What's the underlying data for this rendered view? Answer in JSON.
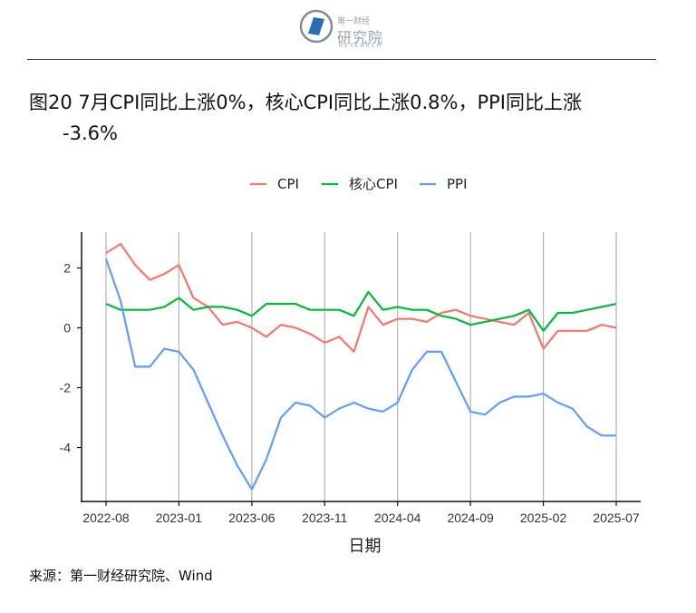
{
  "header": {
    "logo_small": "第一财经",
    "logo_cn": "研究院",
    "logo_en": "RESEARCH"
  },
  "title": {
    "line1": "图20 7月CPI同比上涨0%，核心CPI同比上涨0.8%，PPI同比上涨",
    "line2": "-3.6%"
  },
  "source": "来源：第一财经研究院、Wind",
  "colors": {
    "cpi": "#F8766D",
    "core": "#00BA38",
    "ppi": "#619CFF"
  },
  "chart_data": {
    "type": "line",
    "xlabel": "日期",
    "ylabel": "",
    "ylim": [
      -5.8,
      3.2
    ],
    "yticks": [
      2,
      0,
      -2,
      -4
    ],
    "xticks": [
      "2022-08",
      "2023-01",
      "2023-06",
      "2023-11",
      "2024-04",
      "2024-09",
      "2025-02",
      "2025-07"
    ],
    "legend_position": "top",
    "grid": "vertical",
    "x": [
      "2022-08",
      "2022-09",
      "2022-10",
      "2022-11",
      "2022-12",
      "2023-01",
      "2023-02",
      "2023-03",
      "2023-04",
      "2023-05",
      "2023-06",
      "2023-07",
      "2023-08",
      "2023-09",
      "2023-10",
      "2023-11",
      "2023-12",
      "2024-01",
      "2024-02",
      "2024-03",
      "2024-04",
      "2024-05",
      "2024-06",
      "2024-07",
      "2024-08",
      "2024-09",
      "2024-10",
      "2024-11",
      "2024-12",
      "2025-01",
      "2025-02",
      "2025-03",
      "2025-04",
      "2025-05",
      "2025-06",
      "2025-07"
    ],
    "series": [
      {
        "name": "CPI",
        "color": "#F8766D",
        "values": [
          2.5,
          2.8,
          2.1,
          1.6,
          1.8,
          2.1,
          1.0,
          0.7,
          0.1,
          0.2,
          0.0,
          -0.3,
          0.1,
          0.0,
          -0.2,
          -0.5,
          -0.3,
          -0.8,
          0.7,
          0.1,
          0.3,
          0.3,
          0.2,
          0.5,
          0.6,
          0.4,
          0.3,
          0.2,
          0.1,
          0.5,
          -0.7,
          -0.1,
          -0.1,
          -0.1,
          0.1,
          0.0
        ]
      },
      {
        "name": "核心CPI",
        "color": "#00BA38",
        "values": [
          0.8,
          0.6,
          0.6,
          0.6,
          0.7,
          1.0,
          0.6,
          0.7,
          0.7,
          0.6,
          0.4,
          0.8,
          0.8,
          0.8,
          0.6,
          0.6,
          0.6,
          0.4,
          1.2,
          0.6,
          0.7,
          0.6,
          0.6,
          0.4,
          0.3,
          0.1,
          0.2,
          0.3,
          0.4,
          0.6,
          -0.1,
          0.5,
          0.5,
          0.6,
          0.7,
          0.8
        ]
      },
      {
        "name": "PPI",
        "color": "#619CFF",
        "values": [
          2.3,
          0.9,
          -1.3,
          -1.3,
          -0.7,
          -0.8,
          -1.4,
          -2.5,
          -3.6,
          -4.6,
          -5.4,
          -4.4,
          -3.0,
          -2.5,
          -2.6,
          -3.0,
          -2.7,
          -2.5,
          -2.7,
          -2.8,
          -2.5,
          -1.4,
          -0.8,
          -0.8,
          -1.8,
          -2.8,
          -2.9,
          -2.5,
          -2.3,
          -2.3,
          -2.2,
          -2.5,
          -2.7,
          -3.3,
          -3.6,
          -3.6
        ]
      }
    ]
  }
}
